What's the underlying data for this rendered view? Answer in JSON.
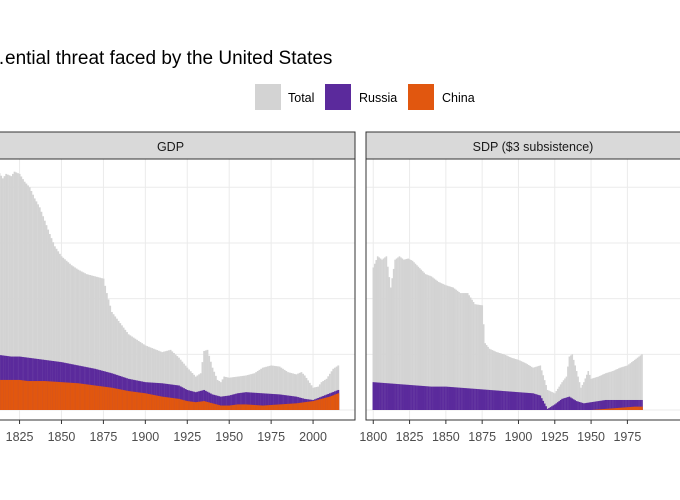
{
  "title": "…ential threat faced by the United States",
  "legend": [
    {
      "label": "Total",
      "color": "#d3d3d3"
    },
    {
      "label": "Russia",
      "color": "#5b2a9c"
    },
    {
      "label": "China",
      "color": "#e1570f"
    }
  ],
  "chart_data": [
    {
      "type": "area",
      "panel_title": "GDP",
      "x_ticks": [
        1825,
        1850,
        1875,
        1900,
        1925,
        1950,
        1975,
        2000
      ],
      "xlim": [
        1805,
        2025
      ],
      "ylim": [
        0,
        2.2
      ],
      "y_gridlines": [
        0,
        0.5,
        1.0,
        1.5,
        2.0
      ],
      "grid": true,
      "series": [
        {
          "name": "Total",
          "color": "#d3d3d3",
          "x": [
            1805,
            1808,
            1811,
            1812,
            1815,
            1817,
            1820,
            1822,
            1825,
            1828,
            1831,
            1834,
            1837,
            1840,
            1843,
            1846,
            1850,
            1853,
            1856,
            1860,
            1865,
            1870,
            1875,
            1877,
            1880,
            1885,
            1890,
            1895,
            1900,
            1905,
            1910,
            1915,
            1920,
            1925,
            1930,
            1933,
            1935,
            1937,
            1940,
            1943,
            1945,
            1947,
            1950,
            1955,
            1960,
            1965,
            1970,
            1975,
            1980,
            1985,
            1990,
            1993,
            1995,
            2000,
            2003,
            2005,
            2008,
            2012,
            2015
          ],
          "y": [
            2.25,
            2.1,
            1.9,
            2.15,
            2.08,
            2.12,
            2.1,
            2.14,
            2.12,
            2.05,
            2.0,
            1.9,
            1.82,
            1.7,
            1.58,
            1.47,
            1.38,
            1.34,
            1.3,
            1.26,
            1.22,
            1.2,
            1.18,
            1.05,
            0.88,
            0.78,
            0.68,
            0.63,
            0.58,
            0.55,
            0.52,
            0.54,
            0.47,
            0.38,
            0.3,
            0.33,
            0.53,
            0.54,
            0.38,
            0.27,
            0.25,
            0.3,
            0.29,
            0.3,
            0.31,
            0.33,
            0.38,
            0.4,
            0.39,
            0.34,
            0.32,
            0.34,
            0.31,
            0.2,
            0.21,
            0.25,
            0.28,
            0.37,
            0.4
          ]
        },
        {
          "name": "Russia",
          "color": "#5b2a9c",
          "x": [
            1805,
            1810,
            1815,
            1820,
            1825,
            1830,
            1840,
            1850,
            1860,
            1870,
            1880,
            1890,
            1900,
            1910,
            1920,
            1925,
            1930,
            1935,
            1940,
            1945,
            1950,
            1955,
            1960,
            1970,
            1980,
            1990,
            1995,
            2000,
            2005,
            2010,
            2015
          ],
          "y": [
            0.5,
            0.5,
            0.49,
            0.48,
            0.48,
            0.47,
            0.45,
            0.43,
            0.4,
            0.37,
            0.33,
            0.28,
            0.25,
            0.24,
            0.22,
            0.18,
            0.16,
            0.18,
            0.14,
            0.12,
            0.13,
            0.15,
            0.16,
            0.15,
            0.14,
            0.12,
            0.1,
            0.09,
            0.12,
            0.15,
            0.18
          ]
        },
        {
          "name": "China",
          "color": "#e1570f",
          "x": [
            1805,
            1810,
            1815,
            1820,
            1825,
            1830,
            1840,
            1850,
            1860,
            1870,
            1880,
            1890,
            1900,
            1910,
            1920,
            1925,
            1930,
            1935,
            1940,
            1945,
            1950,
            1955,
            1960,
            1970,
            1980,
            1990,
            1995,
            2000,
            2005,
            2010,
            2015
          ],
          "y": [
            0.27,
            0.27,
            0.27,
            0.27,
            0.27,
            0.26,
            0.26,
            0.25,
            0.24,
            0.22,
            0.2,
            0.17,
            0.15,
            0.12,
            0.1,
            0.08,
            0.07,
            0.08,
            0.06,
            0.04,
            0.04,
            0.05,
            0.05,
            0.04,
            0.05,
            0.06,
            0.07,
            0.08,
            0.1,
            0.12,
            0.15
          ]
        }
      ]
    },
    {
      "type": "area",
      "panel_title": "SDP ($3 subsistence)",
      "x_ticks": [
        1800,
        1825,
        1850,
        1875,
        1900,
        1925,
        1950,
        1975
      ],
      "xlim": [
        1795,
        2025
      ],
      "ylim": [
        0,
        2.2
      ],
      "y_gridlines": [
        0,
        0.5,
        1.0,
        1.5,
        2.0
      ],
      "grid": true,
      "series": [
        {
          "name": "Total",
          "color": "#d3d3d3",
          "x": [
            1800,
            1803,
            1806,
            1809,
            1812,
            1815,
            1818,
            1821,
            1824,
            1827,
            1830,
            1833,
            1836,
            1840,
            1845,
            1850,
            1855,
            1860,
            1865,
            1870,
            1875,
            1877,
            1880,
            1885,
            1890,
            1895,
            1900,
            1905,
            1910,
            1915,
            1920,
            1925,
            1930,
            1933,
            1935,
            1937,
            1940,
            1943,
            1945,
            1948,
            1950,
            1955,
            1960,
            1965,
            1970,
            1975,
            1980,
            1985
          ],
          "y": [
            1.28,
            1.38,
            1.35,
            1.38,
            1.1,
            1.35,
            1.38,
            1.35,
            1.36,
            1.34,
            1.3,
            1.26,
            1.22,
            1.2,
            1.15,
            1.12,
            1.1,
            1.05,
            1.05,
            0.95,
            0.94,
            0.6,
            0.55,
            0.52,
            0.5,
            0.47,
            0.45,
            0.42,
            0.38,
            0.4,
            0.18,
            0.15,
            0.25,
            0.3,
            0.48,
            0.5,
            0.35,
            0.2,
            0.25,
            0.35,
            0.28,
            0.3,
            0.33,
            0.35,
            0.38,
            0.4,
            0.45,
            0.5
          ]
        },
        {
          "name": "Russia",
          "color": "#5b2a9c",
          "x": [
            1800,
            1810,
            1820,
            1830,
            1840,
            1850,
            1860,
            1870,
            1880,
            1890,
            1900,
            1910,
            1915,
            1920,
            1925,
            1930,
            1935,
            1940,
            1945,
            1950,
            1955,
            1960,
            1970,
            1980,
            1985
          ],
          "y": [
            0.25,
            0.24,
            0.23,
            0.22,
            0.21,
            0.21,
            0.2,
            0.19,
            0.18,
            0.17,
            0.16,
            0.15,
            0.13,
            0.01,
            0.05,
            0.1,
            0.12,
            0.08,
            0.06,
            0.07,
            0.08,
            0.09,
            0.09,
            0.09,
            0.09
          ]
        },
        {
          "name": "China",
          "color": "#e1570f",
          "x": [
            1800,
            1850,
            1900,
            1950,
            1960,
            1970,
            1980,
            1985
          ],
          "y": [
            0,
            0,
            0,
            0,
            0.01,
            0.02,
            0.03,
            0.03
          ]
        }
      ]
    }
  ]
}
